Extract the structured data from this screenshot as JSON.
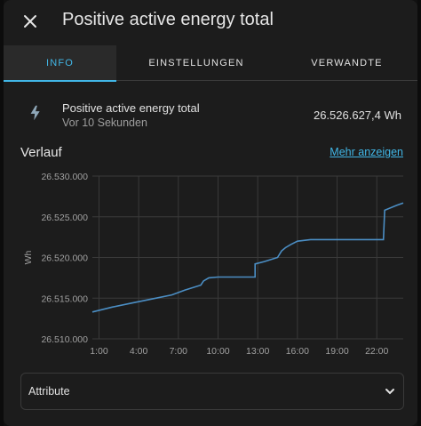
{
  "dialog": {
    "title": "Positive active energy total"
  },
  "tabs": [
    {
      "label": "INFO"
    },
    {
      "label": "EINSTELLUNGEN"
    },
    {
      "label": "VERWANDTE"
    }
  ],
  "entity": {
    "name": "Positive active energy total",
    "last_changed": "Vor 10 Sekunden",
    "state": "26.526.627,4 Wh",
    "icon": "flash-icon"
  },
  "history": {
    "title": "Verlauf",
    "more_link": "Mehr anzeigen"
  },
  "attributes": {
    "label": "Attribute"
  },
  "colors": {
    "accent": "#41b6e6",
    "line": "#4b8ec4",
    "background": "#1c1c1c"
  },
  "chart_data": {
    "type": "line",
    "ylabel": "Wh",
    "xlabel": "",
    "x_ticks": [
      "1:00",
      "4:00",
      "7:00",
      "10:00",
      "13:00",
      "16:00",
      "19:00",
      "22:00"
    ],
    "y_ticks": [
      "26.530.000",
      "26.525.000",
      "26.520.000",
      "26.515.000",
      "26.510.000"
    ],
    "x_range_hours": [
      0.5,
      24.0
    ],
    "ylim": [
      26510000,
      26530000
    ],
    "grid": true,
    "series": [
      {
        "x": [
          0.5,
          2.0,
          3.5,
          5.0,
          6.5,
          7.5,
          8.7,
          8.9,
          9.3,
          10.0,
          11.5,
          12.8,
          12.8,
          13.5,
          14.5,
          14.8,
          15.1,
          15.5,
          16.0,
          17.0,
          18.0,
          20.0,
          22.0,
          22.5,
          22.6,
          23.5,
          24.0
        ],
        "y": [
          26513300,
          26513900,
          26514400,
          26514900,
          26515400,
          26516000,
          26516600,
          26517100,
          26517500,
          26517600,
          26517600,
          26517600,
          26519200,
          26519500,
          26520000,
          26520800,
          26521200,
          26521600,
          26522000,
          26522200,
          26522200,
          26522200,
          26522200,
          26522200,
          26525800,
          26526400,
          26526700
        ]
      }
    ]
  }
}
